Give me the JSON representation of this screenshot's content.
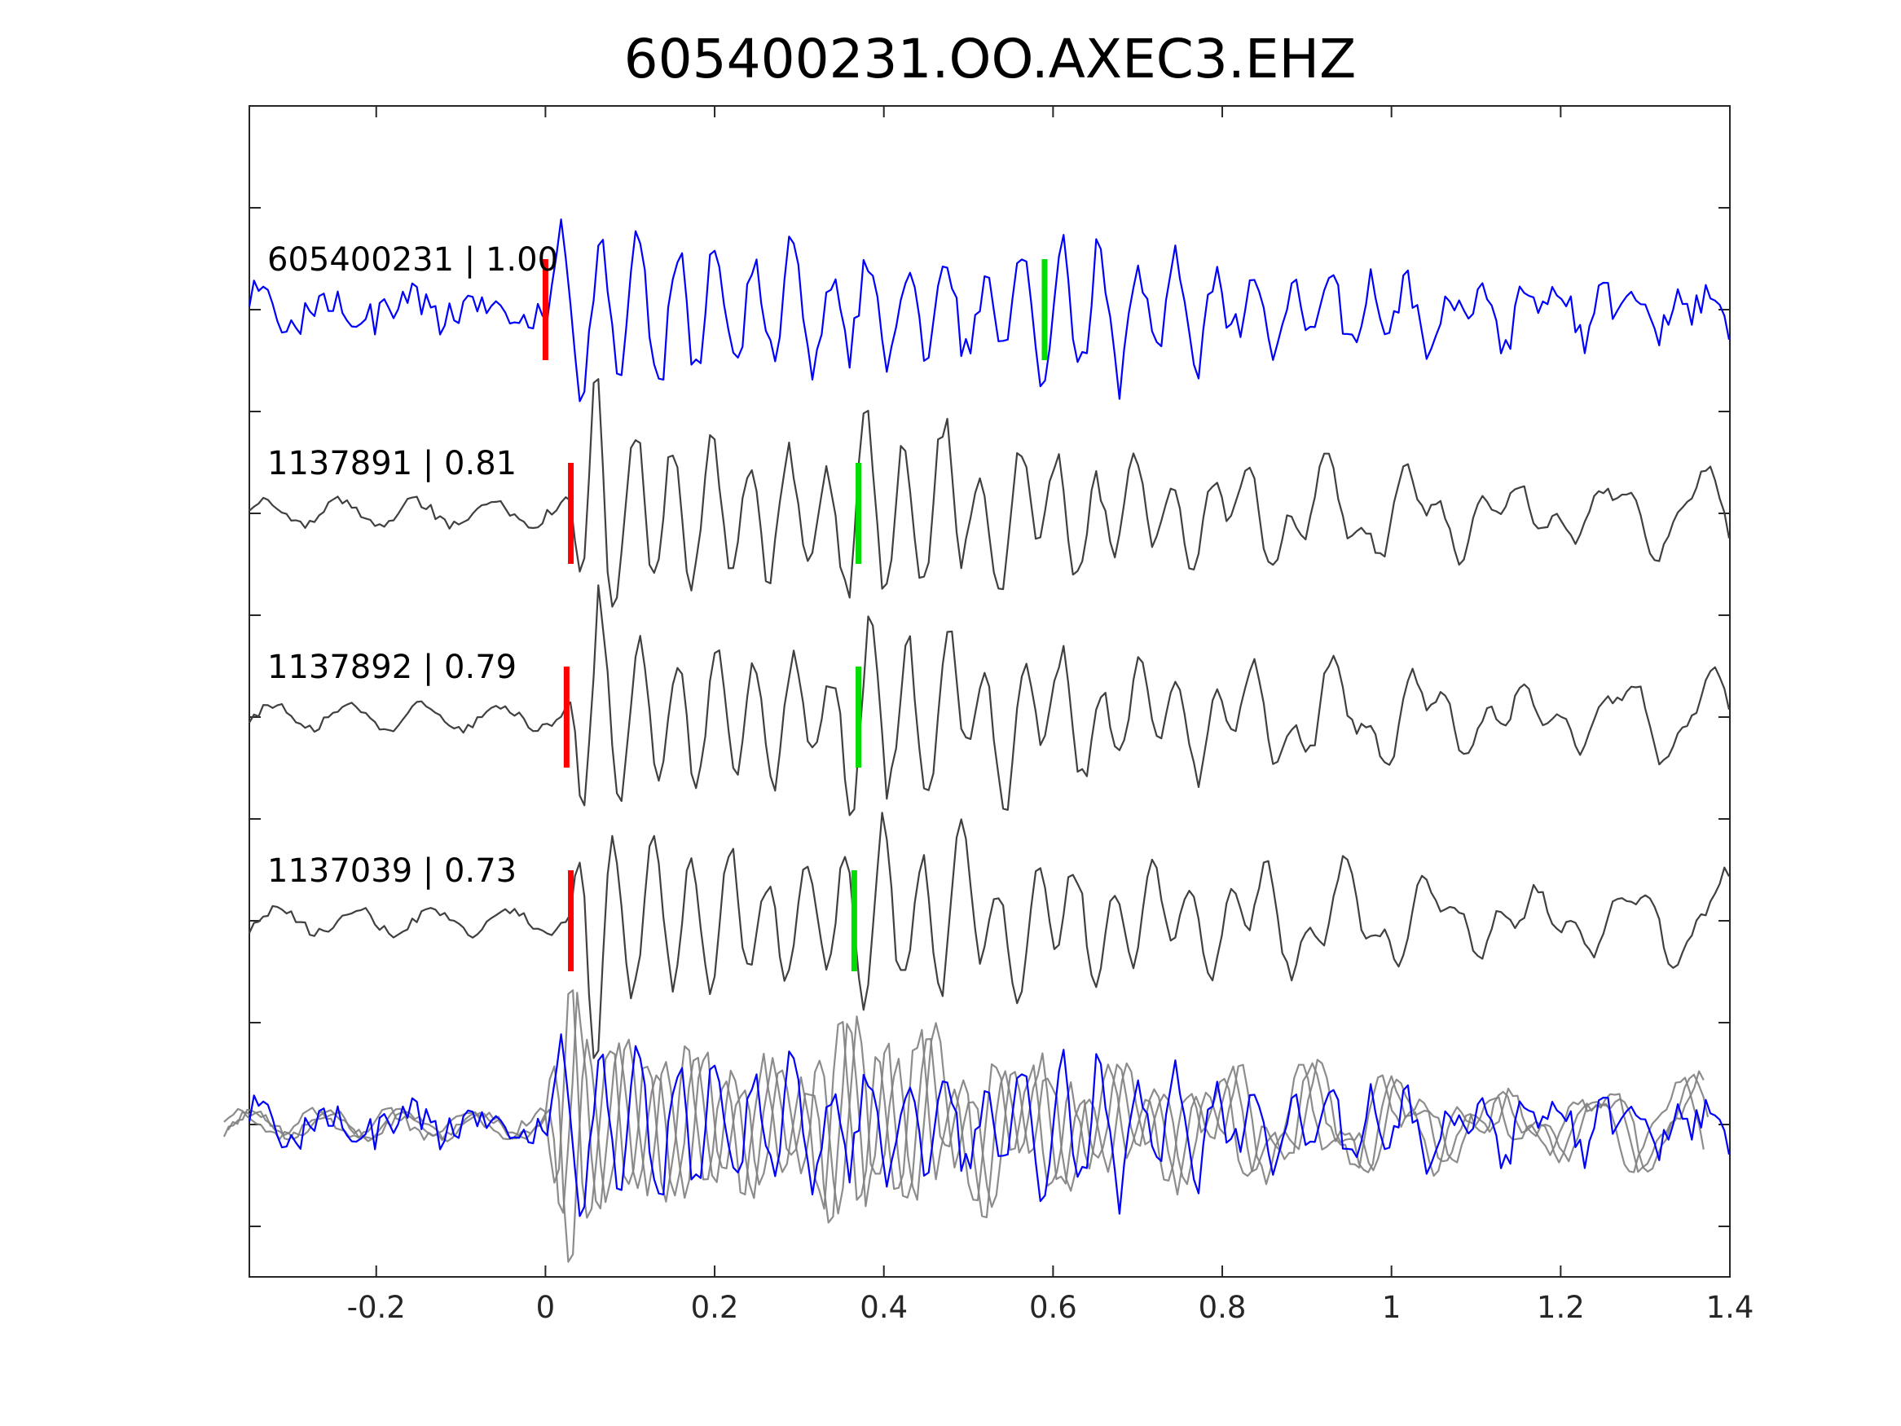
{
  "chart_data": {
    "type": "line",
    "title": "605400231.OO.AXEC3.EHZ",
    "xlabel": "",
    "ylabel": "",
    "xlim": [
      -0.35,
      1.4
    ],
    "x_ticks": [
      -0.2,
      0,
      0.2,
      0.4,
      0.6,
      0.8,
      1,
      1.2,
      1.4
    ],
    "x_tick_labels": [
      "-0.2",
      "0",
      "0.2",
      "0.4",
      "0.6",
      "0.8",
      "1",
      "1.2",
      "1.4"
    ],
    "grid": false,
    "legend": "none",
    "colors": {
      "master": "#0000ff",
      "neighbor": "#404040",
      "overlay_neighbor": "#808080",
      "p_pick": "#ff0000",
      "s_pick": "#00dd00"
    },
    "traces": [
      {
        "label": "605400231 | 1.00",
        "event_id": "605400231",
        "correlation": 1.0,
        "role": "master",
        "p_pick": 0.0,
        "s_pick": 0.59
      },
      {
        "label": "1137891 | 0.81",
        "event_id": "1137891",
        "correlation": 0.81,
        "role": "neighbor",
        "p_pick": 0.03,
        "s_pick": 0.37
      },
      {
        "label": "1137892 | 0.79",
        "event_id": "1137892",
        "correlation": 0.79,
        "role": "neighbor",
        "p_pick": 0.025,
        "s_pick": 0.37
      },
      {
        "label": "1137039 | 0.73",
        "event_id": "1137039",
        "correlation": 0.73,
        "role": "neighbor",
        "p_pick": 0.03,
        "s_pick": 0.365
      }
    ],
    "overlay": {
      "description_role": "stack",
      "members": [
        "605400231",
        "1137891",
        "1137892",
        "1137039"
      ]
    }
  }
}
